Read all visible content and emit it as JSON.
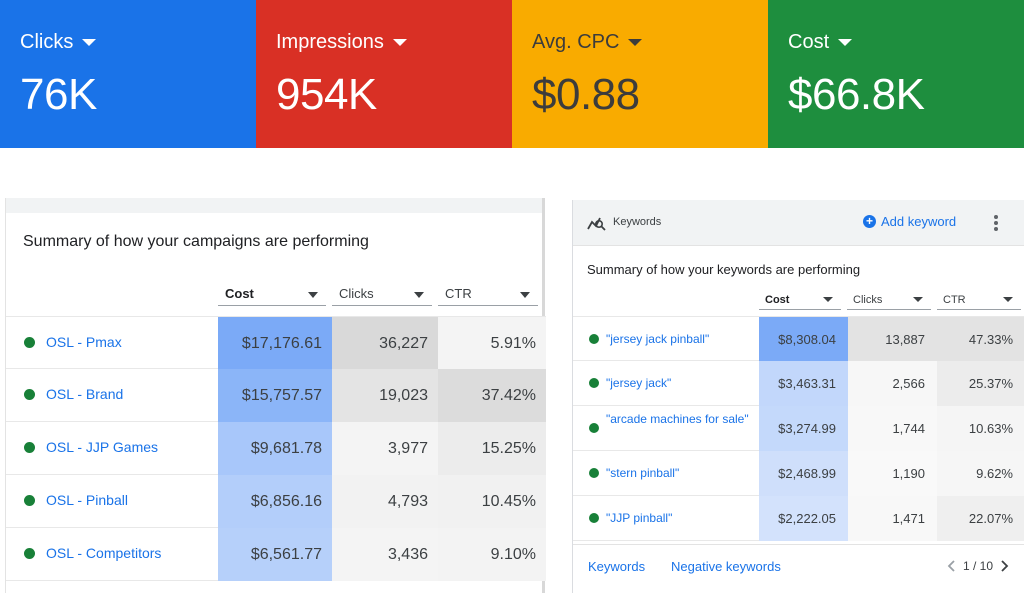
{
  "metrics": [
    {
      "label": "Clicks",
      "value": "76K",
      "color": "#1a73e8"
    },
    {
      "label": "Impressions",
      "value": "954K",
      "color": "#d93025"
    },
    {
      "label": "Avg. CPC",
      "value": "$0.88",
      "color": "#f9ab00"
    },
    {
      "label": "Cost",
      "value": "$66.8K",
      "color": "#1e8e3e"
    }
  ],
  "campaigns": {
    "title": "Summary of how your campaigns are performing",
    "columns": [
      "Cost",
      "Clicks",
      "CTR"
    ],
    "rows": [
      {
        "name": "OSL - Pmax",
        "cost": "$17,176.61",
        "clicks": "36,227",
        "ctr": "5.91%"
      },
      {
        "name": "OSL - Brand",
        "cost": "$15,757.57",
        "clicks": "19,023",
        "ctr": "37.42%"
      },
      {
        "name": "OSL - JJP Games",
        "cost": "$9,681.78",
        "clicks": "3,977",
        "ctr": "15.25%"
      },
      {
        "name": "OSL - Pinball",
        "cost": "$6,856.16",
        "clicks": "4,793",
        "ctr": "10.45%"
      },
      {
        "name": "OSL - Competitors",
        "cost": "$6,561.77",
        "clicks": "3,436",
        "ctr": "9.10%"
      }
    ]
  },
  "keywords": {
    "header_label": "Keywords",
    "add_label": "Add keyword",
    "title": "Summary of how your keywords are performing",
    "columns": [
      "Cost",
      "Clicks",
      "CTR"
    ],
    "rows": [
      {
        "name": "\"jersey jack pinball\"",
        "cost": "$8,308.04",
        "clicks": "13,887",
        "ctr": "47.33%"
      },
      {
        "name": "\"jersey jack\"",
        "cost": "$3,463.31",
        "clicks": "2,566",
        "ctr": "25.37%"
      },
      {
        "name": "\"arcade machines for sale\"",
        "cost": "$3,274.99",
        "clicks": "1,744",
        "ctr": "10.63%"
      },
      {
        "name": "\"stern pinball\"",
        "cost": "$2,468.99",
        "clicks": "1,190",
        "ctr": "9.62%"
      },
      {
        "name": "\"JJP pinball\"",
        "cost": "$2,222.05",
        "clicks": "1,471",
        "ctr": "22.07%"
      }
    ],
    "footer_tabs": [
      "Keywords",
      "Negative keywords"
    ],
    "pager": "1 / 10"
  },
  "heat": {
    "campaigns_cost": [
      "#7baaf7",
      "#8bb5f8",
      "#a8c7fa",
      "#b3cefa",
      "#b6d0fa"
    ],
    "campaigns_clicks": [
      "#d9d9d9",
      "#e4e4e4",
      "#f4f4f4",
      "#f2f2f2",
      "#f4f4f4"
    ],
    "campaigns_ctr": [
      "#f4f4f4",
      "#dcdcdc",
      "#ececec",
      "#f1f1f1",
      "#f3f3f3"
    ],
    "keywords_cost": [
      "#7baaf7",
      "#c2d7fb",
      "#c4d9fb",
      "#cfdffb",
      "#d3e2fc"
    ],
    "keywords_clicks": [
      "#e3e3e3",
      "#f7f7f7",
      "#f8f8f8",
      "#f9f9f9",
      "#f8f8f8"
    ],
    "keywords_ctr": [
      "#e3e3e3",
      "#ececec",
      "#f5f5f5",
      "#f6f6f6",
      "#efefef"
    ]
  }
}
